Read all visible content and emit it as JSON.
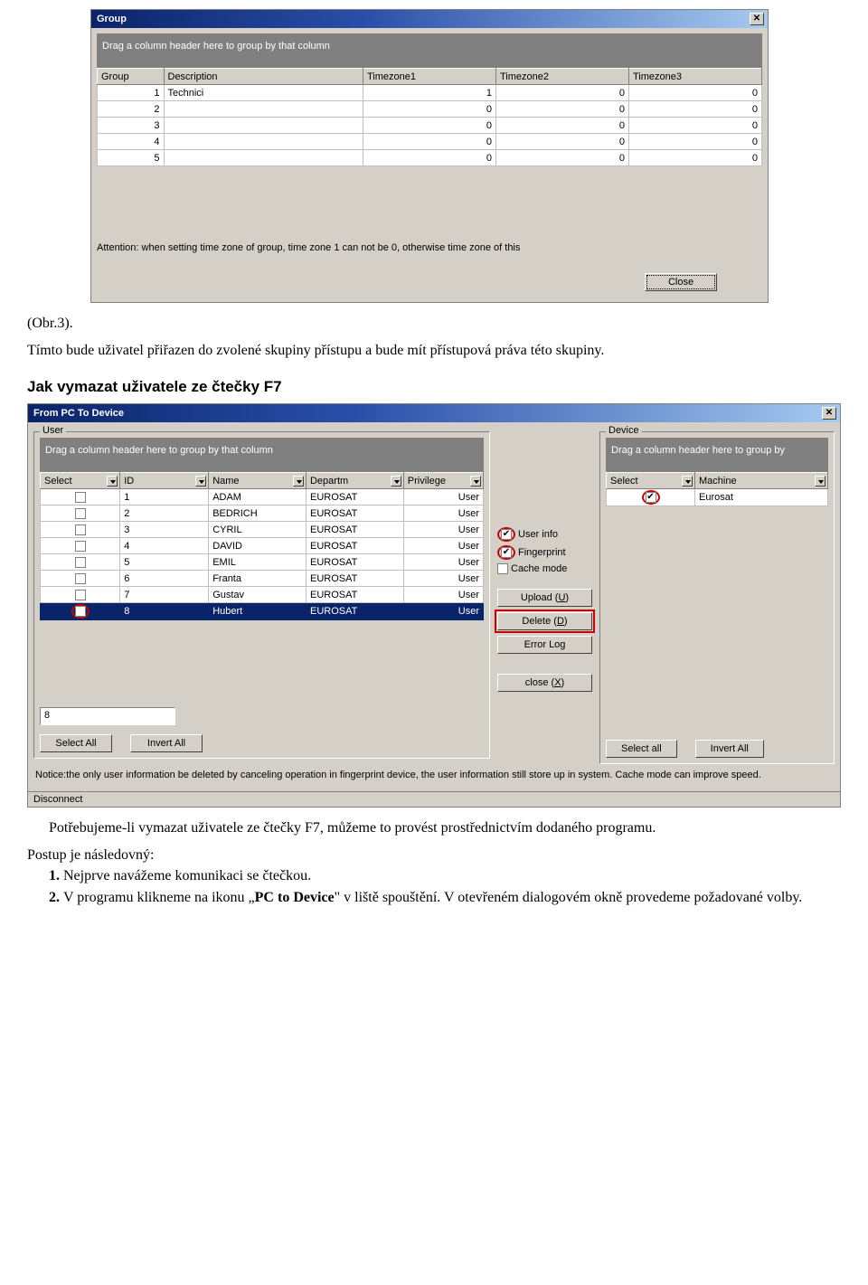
{
  "group_dialog": {
    "title": "Group",
    "drag_hint": "Drag a column header here to group by that column",
    "columns": [
      "Group",
      "Description",
      "Timezone1",
      "Timezone2",
      "Timezone3"
    ],
    "rows": [
      {
        "group": "1",
        "desc": "Technici",
        "tz1": "1",
        "tz2": "0",
        "tz3": "0"
      },
      {
        "group": "2",
        "desc": "",
        "tz1": "0",
        "tz2": "0",
        "tz3": "0"
      },
      {
        "group": "3",
        "desc": "",
        "tz1": "0",
        "tz2": "0",
        "tz3": "0"
      },
      {
        "group": "4",
        "desc": "",
        "tz1": "0",
        "tz2": "0",
        "tz3": "0"
      },
      {
        "group": "5",
        "desc": "",
        "tz1": "0",
        "tz2": "0",
        "tz3": "0"
      }
    ],
    "attention": "Attention: when setting time zone of group, time zone 1 can not be 0, otherwise time zone of this",
    "close_label": "Close"
  },
  "caption": "(Obr.3).",
  "para1": "Tímto bude uživatel přiřazen do zvolené skupiny přístupu a bude mít přístupová práva této skupiny.",
  "heading": "Jak vymazat uživatele ze čtečky F7",
  "pc2dev": {
    "title": "From PC To Device",
    "user_group": "User",
    "device_group": "Device",
    "drag_hint_user": "Drag a column header here to group by that column",
    "drag_hint_device": "Drag a column header here to group by",
    "user_columns": [
      "Select",
      "ID",
      "Name",
      "Departm",
      "Privilege"
    ],
    "user_rows": [
      {
        "sel": false,
        "id": "1",
        "name": "ADAM",
        "dep": "EUROSAT",
        "priv": "User",
        "selected": false
      },
      {
        "sel": false,
        "id": "2",
        "name": "BEDRICH",
        "dep": "EUROSAT",
        "priv": "User",
        "selected": false
      },
      {
        "sel": false,
        "id": "3",
        "name": "CYRIL",
        "dep": "EUROSAT",
        "priv": "User",
        "selected": false
      },
      {
        "sel": false,
        "id": "4",
        "name": "DAVID",
        "dep": "EUROSAT",
        "priv": "User",
        "selected": false
      },
      {
        "sel": false,
        "id": "5",
        "name": "EMIL",
        "dep": "EUROSAT",
        "priv": "User",
        "selected": false
      },
      {
        "sel": false,
        "id": "6",
        "name": "Franta",
        "dep": "EUROSAT",
        "priv": "User",
        "selected": false
      },
      {
        "sel": false,
        "id": "7",
        "name": "Gustav",
        "dep": "EUROSAT",
        "priv": "User",
        "selected": false
      },
      {
        "sel": true,
        "id": "8",
        "name": "Hubert",
        "dep": "EUROSAT",
        "priv": "User",
        "selected": true
      }
    ],
    "device_columns": [
      "Select",
      "Machine"
    ],
    "device_rows": [
      {
        "sel": true,
        "machine": "Eurosat"
      }
    ],
    "chk_userinfo": "User info",
    "chk_fingerprint": "Fingerprint",
    "chk_cachemode": "Cache mode",
    "btn_upload": "Upload (U)",
    "btn_delete": "Delete (D)",
    "btn_errorlog": "Error Log",
    "btn_close": "close (X)",
    "btn_selectall": "Select All",
    "btn_invertall": "Invert All",
    "btn_selectall2": "Select all",
    "btn_invertall2": "Invert All",
    "input_value": "8",
    "notice": "Notice:the only user information  be deleted by canceling operation in fingerprint device, the user information still store up in system. Cache mode can improve speed.",
    "status": "Disconnect"
  },
  "para2": "Potřebujeme-li vymazat uživatele ze čtečky F7, můžeme to provést prostřednictvím dodaného programu.",
  "para3": "Postup je následovný:",
  "step1_label": "1. ",
  "step1": "Nejprve navážeme komunikaci se čtečkou.",
  "step2_label": "2. ",
  "step2a": "V programu klikneme na ikonu „",
  "step2bold": "PC to Device",
  "step2b": "\" v liště spouštění. V otevřeném dialogovém okně provedeme požadované volby.",
  "colors": {
    "titlebar_start": "#0a246a",
    "titlebar_end": "#a6caf0",
    "dialog_bg": "#d4d0c8",
    "highlight": "#cc0000",
    "selection_bg": "#0a246a"
  }
}
